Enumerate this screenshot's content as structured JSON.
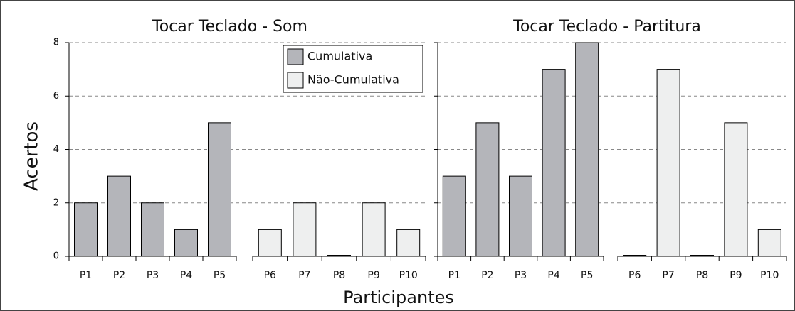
{
  "ylabel": "Acertos",
  "xlabel": "Participantes",
  "chart_data": [
    {
      "type": "bar",
      "title": "Tocar Teclado - Som",
      "categories": [
        "P1",
        "P2",
        "P3",
        "P4",
        "P5",
        "P6",
        "P7",
        "P8",
        "P9",
        "P10"
      ],
      "series": [
        {
          "name": "Cumulativa",
          "color": "#b4b5ba",
          "values": [
            2,
            3,
            2,
            1,
            5,
            null,
            null,
            null,
            null,
            null
          ]
        },
        {
          "name": "Não-Cumulativa",
          "color": "#eeefef",
          "values": [
            null,
            null,
            null,
            null,
            null,
            1,
            2,
            0,
            2,
            1
          ]
        }
      ],
      "ylim": [
        0,
        8
      ],
      "yticks": [
        0,
        2,
        4,
        6,
        8
      ],
      "grid": true
    },
    {
      "type": "bar",
      "title": "Tocar Teclado - Partitura",
      "categories": [
        "P1",
        "P2",
        "P3",
        "P4",
        "P5",
        "P6",
        "P7",
        "P8",
        "P9",
        "P10"
      ],
      "series": [
        {
          "name": "Cumulativa",
          "color": "#b4b5ba",
          "values": [
            3,
            5,
            3,
            7,
            8,
            null,
            null,
            null,
            null,
            null
          ]
        },
        {
          "name": "Não-Cumulativa",
          "color": "#eeefef",
          "values": [
            null,
            null,
            null,
            null,
            null,
            0,
            7,
            0,
            5,
            1
          ]
        }
      ],
      "ylim": [
        0,
        8
      ],
      "yticks": [
        0,
        2,
        4,
        6,
        8
      ],
      "grid": true
    }
  ]
}
